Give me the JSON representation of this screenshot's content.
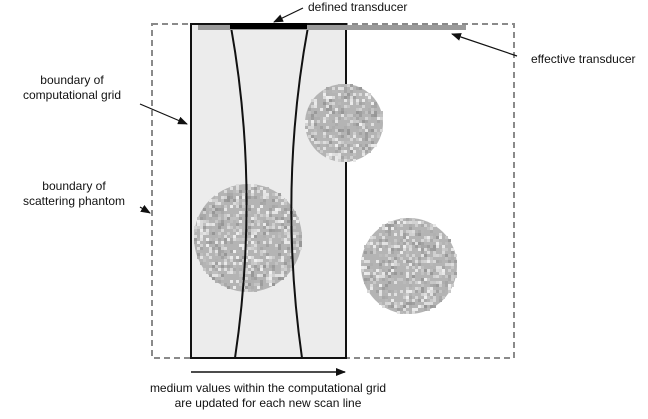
{
  "labels": {
    "defined_transducer": "defined transducer",
    "effective_transducer": "effective transducer",
    "grid_boundary_line1": "boundary of",
    "grid_boundary_line2": "computational grid",
    "phantom_boundary_line1": "boundary of",
    "phantom_boundary_line2": "scattering phantom",
    "caption_line1": "medium values within the computational grid",
    "caption_line2": "are updated for each new scan line"
  },
  "colors": {
    "grid_fill": "#ececec",
    "outline": "#111111",
    "dashed_border": "#8a8a8a",
    "effective_transducer": "#9a9a9a",
    "defined_transducer": "#000000",
    "scatterer_base": "#b4b4b4"
  }
}
